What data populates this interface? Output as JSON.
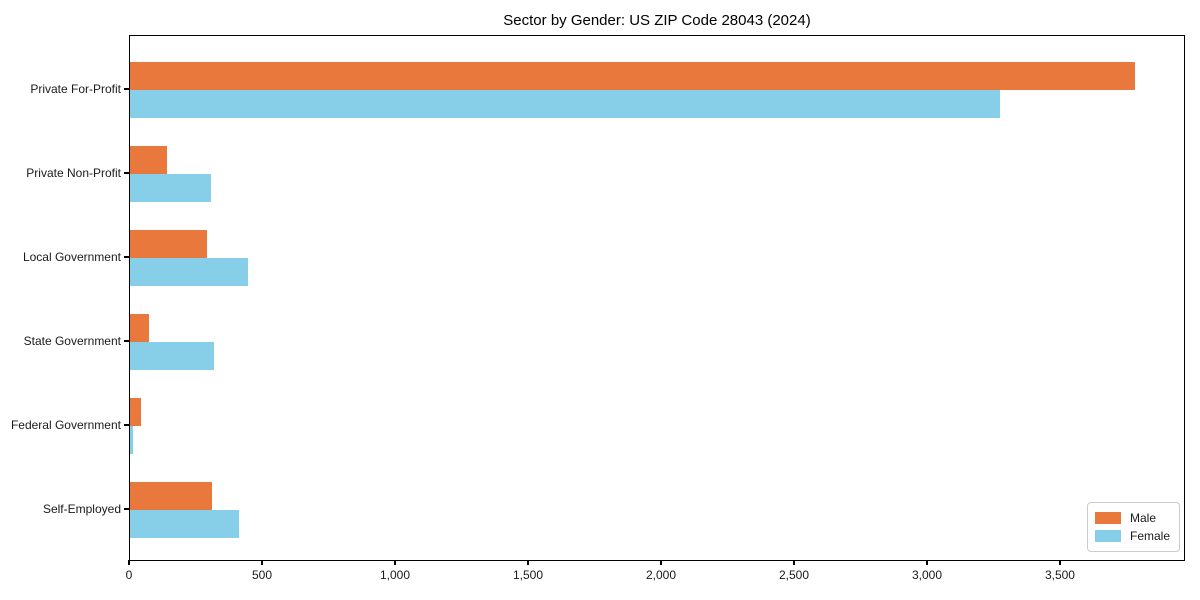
{
  "chart_data": {
    "type": "bar",
    "orientation": "horizontal",
    "title": "Sector by Gender: US ZIP Code 28043 (2024)",
    "categories": [
      "Private For-Profit",
      "Private Non-Profit",
      "Local Government",
      "State Government",
      "Federal Government",
      "Self-Employed"
    ],
    "series": [
      {
        "name": "Male",
        "color": "#e8783c",
        "values": [
          3780,
          140,
          290,
          70,
          40,
          310
        ]
      },
      {
        "name": "Female",
        "color": "#87cee9",
        "values": [
          3270,
          305,
          445,
          315,
          10,
          410
        ]
      }
    ],
    "xlabel": "",
    "ylabel": "",
    "xlim": [
      0,
      3970
    ],
    "xticks": [
      0,
      500,
      1000,
      1500,
      2000,
      2500,
      3000,
      3500
    ],
    "xtick_labels": [
      "0",
      "500",
      "1,000",
      "1,500",
      "2,000",
      "2,500",
      "3,000",
      "3,500"
    ],
    "legend": {
      "position": "lower right",
      "entries": [
        "Male",
        "Female"
      ]
    },
    "grid": false
  }
}
